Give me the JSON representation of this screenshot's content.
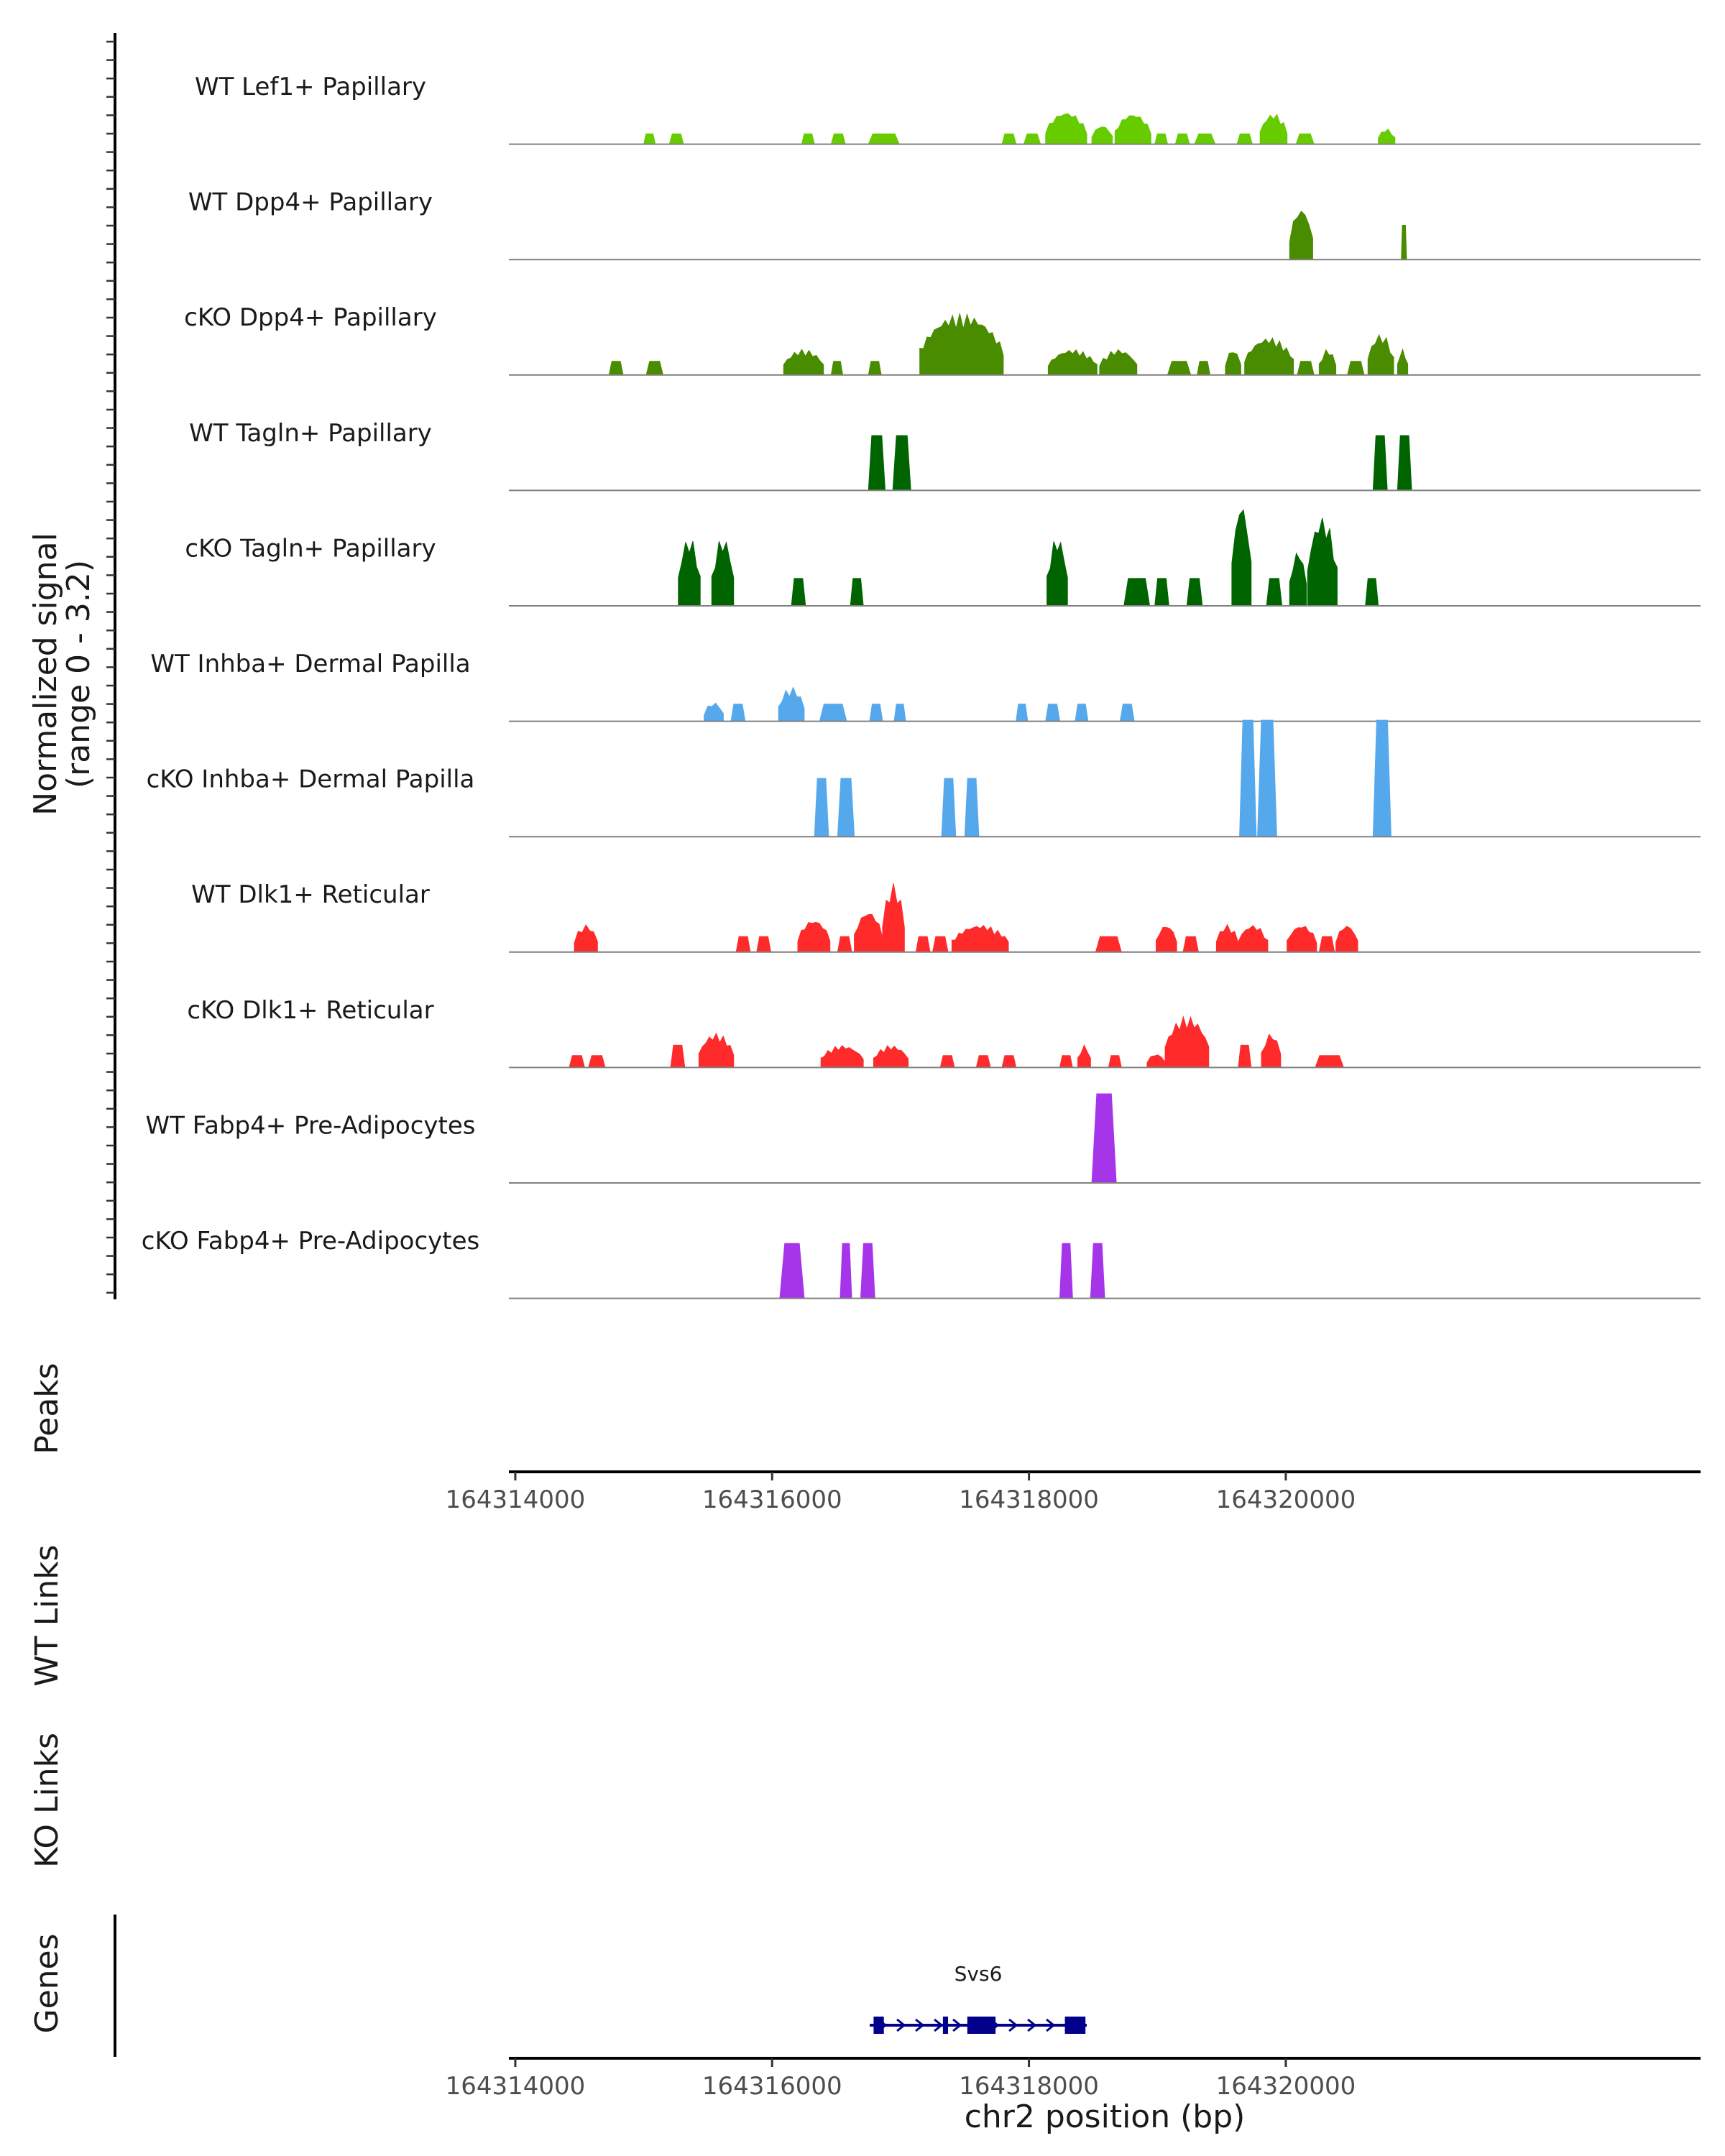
{
  "chart_data": {
    "type": "area",
    "title": "",
    "ylabel": "Normalized signal",
    "ylabel_range": "(range 0 - 3.2)",
    "ylim": [
      0,
      3.2
    ],
    "xlabel": "chr2 position (bp)",
    "xlim": [
      164313950,
      164323230
    ],
    "xticks": [
      164314000,
      164316000,
      164318000,
      164320000
    ],
    "xtick_labels": [
      "164314000",
      "164316000",
      "164318000",
      "164320000"
    ],
    "panel_labels": {
      "peaks": "Peaks",
      "wt_links": "WT Links",
      "ko_links": "KO Links",
      "genes": "Genes"
    },
    "series": [
      {
        "name": "WT Lef1+ Papillary",
        "color": "#66cc00",
        "peaks": [
          [
            164315000,
            164315090,
            0.3,
            "f"
          ],
          [
            164315200,
            164315310,
            0.3,
            "f"
          ],
          [
            164316230,
            164316330,
            0.3,
            "f"
          ],
          [
            164316460,
            164316570,
            0.3,
            "f"
          ],
          [
            164316750,
            164316990,
            0.3,
            "f"
          ],
          [
            164317790,
            164317900,
            0.3,
            "f"
          ],
          [
            164317960,
            164318090,
            0.3,
            "f"
          ],
          [
            164318130,
            164318450,
            0.95,
            "b"
          ],
          [
            164318490,
            164318650,
            0.55,
            "b"
          ],
          [
            164318670,
            164318950,
            0.9,
            "b"
          ],
          [
            164318980,
            164319080,
            0.3,
            "f"
          ],
          [
            164319140,
            164319250,
            0.3,
            "f"
          ],
          [
            164319290,
            164319450,
            0.3,
            "f"
          ],
          [
            164319620,
            164319740,
            0.3,
            "f"
          ],
          [
            164319800,
            164320010,
            0.9,
            "b"
          ],
          [
            164320080,
            164320220,
            0.3,
            "f"
          ],
          [
            164320720,
            164320850,
            0.45,
            "b"
          ]
        ]
      },
      {
        "name": "WT Dpp4+ Papillary",
        "color": "#4a8c00",
        "peaks": [
          [
            164320030,
            164320210,
            1.5,
            "b"
          ],
          [
            164320900,
            164320940,
            1.0,
            "t"
          ]
        ]
      },
      {
        "name": "cKO Dpp4+ Papillary",
        "color": "#4a8c00",
        "peaks": [
          [
            164314730,
            164314840,
            0.4,
            "f"
          ],
          [
            164315020,
            164315150,
            0.4,
            "f"
          ],
          [
            164316090,
            164316400,
            0.75,
            "b"
          ],
          [
            164316460,
            164316550,
            0.4,
            "f"
          ],
          [
            164316750,
            164316850,
            0.4,
            "f"
          ],
          [
            164317150,
            164317800,
            1.8,
            "b"
          ],
          [
            164318150,
            164318530,
            0.75,
            "b"
          ],
          [
            164318550,
            164318840,
            0.75,
            "b"
          ],
          [
            164319080,
            164319260,
            0.4,
            "f"
          ],
          [
            164319310,
            164319410,
            0.4,
            "f"
          ],
          [
            164319530,
            164319650,
            0.75,
            "b"
          ],
          [
            164319680,
            164320060,
            1.1,
            "b"
          ],
          [
            164320090,
            164320220,
            0.4,
            "f"
          ],
          [
            164320260,
            164320390,
            0.75,
            "b"
          ],
          [
            164320480,
            164320610,
            0.4,
            "f"
          ],
          [
            164320640,
            164320840,
            1.2,
            "b"
          ],
          [
            164320870,
            164320950,
            0.75,
            "b"
          ]
        ]
      },
      {
        "name": "WT Tagln+ Papillary",
        "color": "#006400",
        "peaks": [
          [
            164316750,
            164316880,
            1.6,
            "f"
          ],
          [
            164316940,
            164317080,
            1.6,
            "f"
          ],
          [
            164320680,
            164320790,
            1.6,
            "f"
          ],
          [
            164320870,
            164320980,
            1.6,
            "f"
          ]
        ]
      },
      {
        "name": "cKO Tagln+ Papillary",
        "color": "#006400",
        "peaks": [
          [
            164315270,
            164315440,
            2.0,
            "b"
          ],
          [
            164315530,
            164315700,
            2.0,
            "b"
          ],
          [
            164316150,
            164316260,
            0.8,
            "f"
          ],
          [
            164316610,
            164316710,
            0.8,
            "f"
          ],
          [
            164318140,
            164318300,
            2.0,
            "b"
          ],
          [
            164318740,
            164318940,
            0.8,
            "f"
          ],
          [
            164318980,
            164319090,
            0.8,
            "f"
          ],
          [
            164319230,
            164319350,
            0.8,
            "f"
          ],
          [
            164319580,
            164319730,
            3.0,
            "b"
          ],
          [
            164319850,
            164319970,
            0.8,
            "f"
          ],
          [
            164320030,
            164320160,
            1.6,
            "b"
          ],
          [
            164320170,
            164320400,
            2.6,
            "b"
          ],
          [
            164320620,
            164320720,
            0.8,
            "f"
          ]
        ]
      },
      {
        "name": "WT Inhba+ Dermal Papilla",
        "color": "#56a8ec",
        "peaks": [
          [
            164315470,
            164315620,
            0.55,
            "b"
          ],
          [
            164315680,
            164315790,
            0.5,
            "f"
          ],
          [
            164316050,
            164316250,
            1.0,
            "b"
          ],
          [
            164316370,
            164316580,
            0.5,
            "f"
          ],
          [
            164316760,
            164316860,
            0.5,
            "f"
          ],
          [
            164316950,
            164317040,
            0.5,
            "f"
          ],
          [
            164317900,
            164317990,
            0.5,
            "f"
          ],
          [
            164318130,
            164318240,
            0.5,
            "f"
          ],
          [
            164318360,
            164318460,
            0.5,
            "f"
          ],
          [
            164318710,
            164318820,
            0.5,
            "f"
          ]
        ]
      },
      {
        "name": "cKO Inhba+ Dermal Papilla",
        "color": "#56a8ec",
        "peaks": [
          [
            164316330,
            164316440,
            1.7,
            "t"
          ],
          [
            164316510,
            164316640,
            1.7,
            "t"
          ],
          [
            164317320,
            164317430,
            1.7,
            "t"
          ],
          [
            164317500,
            164317610,
            1.7,
            "t"
          ],
          [
            164319640,
            164319770,
            3.4,
            "t"
          ],
          [
            164319780,
            164319930,
            3.4,
            "t"
          ],
          [
            164320680,
            164320820,
            3.4,
            "t"
          ]
        ]
      },
      {
        "name": "WT Dlk1+ Reticular",
        "color": "#ff2b2b",
        "peaks": [
          [
            164314460,
            164314640,
            0.8,
            "b"
          ],
          [
            164315720,
            164315830,
            0.45,
            "f"
          ],
          [
            164315880,
            164315990,
            0.45,
            "f"
          ],
          [
            164316200,
            164316450,
            0.95,
            "b"
          ],
          [
            164316510,
            164316620,
            0.45,
            "f"
          ],
          [
            164316640,
            164316860,
            1.2,
            "b"
          ],
          [
            164316860,
            164317030,
            2.0,
            "b"
          ],
          [
            164317120,
            164317230,
            0.45,
            "f"
          ],
          [
            164317250,
            164317370,
            0.45,
            "f"
          ],
          [
            164317400,
            164317840,
            0.8,
            "b"
          ],
          [
            164318520,
            164318720,
            0.45,
            "f"
          ],
          [
            164318990,
            164319150,
            0.8,
            "b"
          ],
          [
            164319200,
            164319320,
            0.45,
            "f"
          ],
          [
            164319460,
            164319630,
            0.8,
            "b"
          ],
          [
            164319630,
            164319860,
            0.8,
            "b"
          ],
          [
            164320010,
            164320240,
            0.8,
            "b"
          ],
          [
            164320260,
            164320380,
            0.45,
            "f"
          ],
          [
            164320390,
            164320560,
            0.8,
            "b"
          ]
        ]
      },
      {
        "name": "cKO Dlk1+ Reticular",
        "color": "#ff2b2b",
        "peaks": [
          [
            164314420,
            164314540,
            0.35,
            "f"
          ],
          [
            164314570,
            164314700,
            0.35,
            "f"
          ],
          [
            164315210,
            164315320,
            0.65,
            "f"
          ],
          [
            164315430,
            164315700,
            1.0,
            "b"
          ],
          [
            164316380,
            164316710,
            0.65,
            "b"
          ],
          [
            164316790,
            164317060,
            0.65,
            "b"
          ],
          [
            164317310,
            164317420,
            0.35,
            "f"
          ],
          [
            164317590,
            164317700,
            0.35,
            "f"
          ],
          [
            164317790,
            164317900,
            0.35,
            "f"
          ],
          [
            164318240,
            164318340,
            0.35,
            "f"
          ],
          [
            164318380,
            164318480,
            0.65,
            "b"
          ],
          [
            164318620,
            164318720,
            0.35,
            "f"
          ],
          [
            164318920,
            164319060,
            0.4,
            "b"
          ],
          [
            164319060,
            164319400,
            1.5,
            "b"
          ],
          [
            164319630,
            164319730,
            0.65,
            "f"
          ],
          [
            164319810,
            164319960,
            1.0,
            "b"
          ],
          [
            164320230,
            164320450,
            0.35,
            "f"
          ]
        ]
      },
      {
        "name": "WT Fabp4+ Pre-Adipocytes",
        "color": "#a635e9",
        "peaks": [
          [
            164318490,
            164318680,
            2.6,
            "t"
          ]
        ]
      },
      {
        "name": "cKO Fabp4+ Pre-Adipocytes",
        "color": "#a635e9",
        "peaks": [
          [
            164316060,
            164316250,
            1.6,
            "t"
          ],
          [
            164316530,
            164316620,
            1.6,
            "t"
          ],
          [
            164316690,
            164316800,
            1.6,
            "t"
          ],
          [
            164318240,
            164318340,
            1.6,
            "t"
          ],
          [
            164318480,
            164318590,
            1.6,
            "t"
          ]
        ]
      }
    ],
    "genes": [
      {
        "name": "Svs6",
        "strand": "+",
        "start": 164316760,
        "end": 164318450,
        "exons": [
          [
            164316790,
            164316870
          ],
          [
            164317330,
            164317370
          ],
          [
            164317520,
            164317740
          ],
          [
            164318280,
            164318440
          ]
        ]
      }
    ]
  }
}
